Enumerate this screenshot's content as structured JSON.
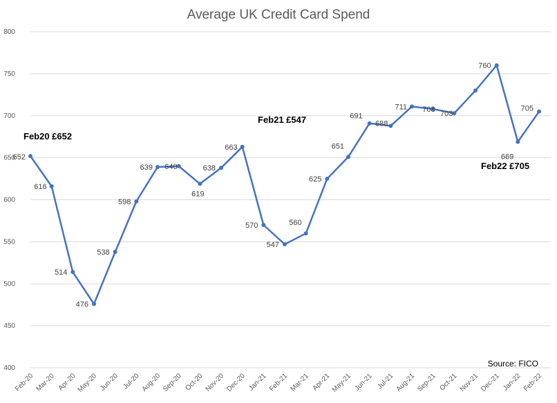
{
  "chart_data": {
    "type": "line",
    "title": "Average UK Credit Card Spend",
    "source": "Source: FICO",
    "xlabel": "",
    "ylabel": "",
    "ylim": [
      400,
      800
    ],
    "yticks": [
      400,
      450,
      500,
      550,
      600,
      650,
      700,
      750,
      800
    ],
    "grid": true,
    "legend": "none",
    "categories": [
      "Feb-20",
      "Mar-20",
      "Apr-20",
      "May-20",
      "Jun-20",
      "Jul-20",
      "Aug-20",
      "Sep-20",
      "Oct-20",
      "Nov-20",
      "Dec-20",
      "Jan-21",
      "Feb-21",
      "Mar-21",
      "Apr-21",
      "May-21",
      "Jun-21",
      "Jul-21",
      "Aug-21",
      "Sep-21",
      "Oct-21",
      "Nov-21",
      "Dec-21",
      "Jan-22",
      "Feb-22"
    ],
    "series": [
      {
        "color": "#4472c4",
        "values": [
          652,
          616,
          514,
          476,
          538,
          598,
          639,
          640,
          619,
          638,
          663,
          570,
          547,
          560,
          625,
          651,
          691,
          688,
          711,
          708,
          703,
          730,
          760,
          669,
          705
        ],
        "labels": [
          "652",
          "616",
          "514",
          "476",
          "538",
          "598",
          "639",
          "640",
          "619",
          "638",
          "663",
          "570",
          "547",
          "560",
          "625",
          "651",
          "691",
          "688",
          "711",
          "708",
          "703",
          "",
          "760",
          "669",
          "705"
        ]
      }
    ],
    "annotations": [
      {
        "text": "Feb20 £652"
      },
      {
        "text": "Feb21 £547"
      },
      {
        "text": "Feb22 £705"
      }
    ]
  }
}
